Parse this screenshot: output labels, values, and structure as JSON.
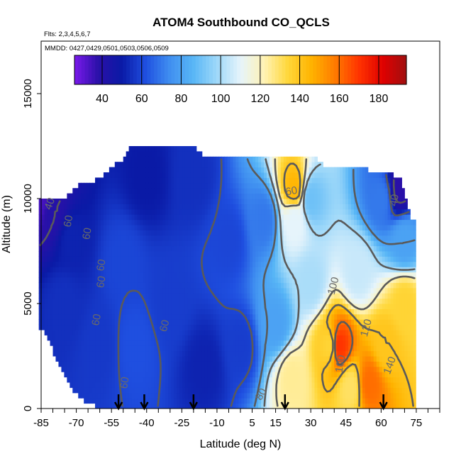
{
  "chart_data": {
    "type": "heatmap",
    "title": "ATOM4 Southbound CO_QCLS",
    "flights_label": "Flts: 2,3,4,5,6,7",
    "dates_label": "MMDD: 0427,0429,0501,0503,0506,0509",
    "xlabel": "Latitude (deg N)",
    "ylabel": "Altitude (m)",
    "xlim": [
      -85,
      85
    ],
    "ylim": [
      0,
      17500
    ],
    "x_ticks": [
      "-85",
      "-70",
      "-55",
      "-40",
      "-25",
      "-10",
      "5",
      "15",
      "30",
      "45",
      "60",
      "75"
    ],
    "x_tick_values": [
      -85,
      -70,
      -55,
      -40,
      -25,
      -10,
      5,
      15,
      30,
      45,
      60,
      75
    ],
    "y_ticks": [
      "0",
      "5000",
      "10000",
      "15000"
    ],
    "y_tick_values": [
      0,
      5000,
      10000,
      15000
    ],
    "colorbar": {
      "ticks": [
        "40",
        "60",
        "80",
        "100",
        "120",
        "140",
        "160",
        "180"
      ],
      "tick_values": [
        40,
        60,
        80,
        100,
        120,
        140,
        160,
        180
      ],
      "range": [
        26,
        194
      ],
      "colors": [
        "#7a1aeb",
        "#2a10a8",
        "#0a1aa6",
        "#1f4fe0",
        "#3f8ef0",
        "#58b6f6",
        "#9ed8f9",
        "#e6f4fb",
        "#fff3b5",
        "#ffd73a",
        "#ffb300",
        "#ff7a00",
        "#ff3300",
        "#e00000",
        "#a01010"
      ]
    },
    "contour_labels": [
      "40",
      "40",
      "60",
      "60",
      "60",
      "60",
      "60",
      "60",
      "60",
      "60",
      "80",
      "100",
      "100",
      "120",
      "140"
    ],
    "profile_arrow_latitudes": [
      -52,
      -41,
      -20,
      19,
      61
    ],
    "data_mask": {
      "lat": [
        -87,
        -83,
        -79,
        -75,
        -71,
        -67,
        -63,
        -59,
        -55,
        -51,
        -47,
        -43,
        -39,
        -35,
        -31,
        -27,
        -23,
        -19,
        -15,
        -11,
        -7,
        -3,
        1,
        5,
        9,
        13,
        17,
        21,
        25,
        29,
        33,
        37,
        41,
        45,
        49,
        53,
        57,
        61,
        65,
        69,
        73
      ],
      "bottom_m": [
        4000,
        3500,
        2500,
        1500,
        800,
        400,
        200,
        0,
        0,
        0,
        0,
        0,
        0,
        0,
        0,
        0,
        0,
        0,
        0,
        0,
        0,
        0,
        0,
        0,
        0,
        0,
        0,
        0,
        0,
        0,
        0,
        0,
        0,
        0,
        0,
        0,
        0,
        0,
        0,
        0,
        0
      ],
      "top_m": [
        10000,
        10000,
        10000,
        10000,
        10500,
        10800,
        10800,
        11000,
        11500,
        11800,
        12400,
        12400,
        12400,
        12400,
        12400,
        12400,
        12400,
        12400,
        11900,
        11900,
        11900,
        11900,
        11900,
        11900,
        11900,
        11900,
        11900,
        11900,
        11900,
        11900,
        11900,
        11500,
        11400,
        11400,
        11400,
        11400,
        11300,
        11300,
        11200,
        10800,
        9000
      ]
    },
    "field_anchors": [
      {
        "lat": -85,
        "alt": 10000,
        "value": 34
      },
      {
        "lat": -80,
        "alt": 9500,
        "value": 40
      },
      {
        "lat": -75,
        "alt": 5000,
        "value": 55
      },
      {
        "lat": -72,
        "alt": 8000,
        "value": 52
      },
      {
        "lat": -60,
        "alt": 3000,
        "value": 57
      },
      {
        "lat": -50,
        "alt": 7000,
        "value": 60
      },
      {
        "lat": -45,
        "alt": 3000,
        "value": 62
      },
      {
        "lat": -40,
        "alt": 11000,
        "value": 50
      },
      {
        "lat": -30,
        "alt": 5000,
        "value": 58
      },
      {
        "lat": -20,
        "alt": 11000,
        "value": 55
      },
      {
        "lat": -15,
        "alt": 2000,
        "value": 52
      },
      {
        "lat": -5,
        "alt": 8000,
        "value": 60
      },
      {
        "lat": 0,
        "alt": 3000,
        "value": 58
      },
      {
        "lat": 10,
        "alt": 9000,
        "value": 70
      },
      {
        "lat": 15,
        "alt": 4000,
        "value": 80
      },
      {
        "lat": 22,
        "alt": 1500,
        "value": 125
      },
      {
        "lat": 23,
        "alt": 9000,
        "value": 110
      },
      {
        "lat": 23,
        "alt": 10500,
        "value": 145
      },
      {
        "lat": 30,
        "alt": 6000,
        "value": 100
      },
      {
        "lat": 30,
        "alt": 10000,
        "value": 90
      },
      {
        "lat": 38,
        "alt": 3000,
        "value": 135
      },
      {
        "lat": 42,
        "alt": 3000,
        "value": 170
      },
      {
        "lat": 47,
        "alt": 1000,
        "value": 130
      },
      {
        "lat": 50,
        "alt": 6500,
        "value": 105
      },
      {
        "lat": 55,
        "alt": 1200,
        "value": 160
      },
      {
        "lat": 60,
        "alt": 10000,
        "value": 70
      },
      {
        "lat": 62,
        "alt": 3000,
        "value": 140
      },
      {
        "lat": 68,
        "alt": 10500,
        "value": 38
      },
      {
        "lat": 70,
        "alt": 5000,
        "value": 135
      },
      {
        "lat": 70,
        "alt": 8000,
        "value": 80
      }
    ]
  }
}
